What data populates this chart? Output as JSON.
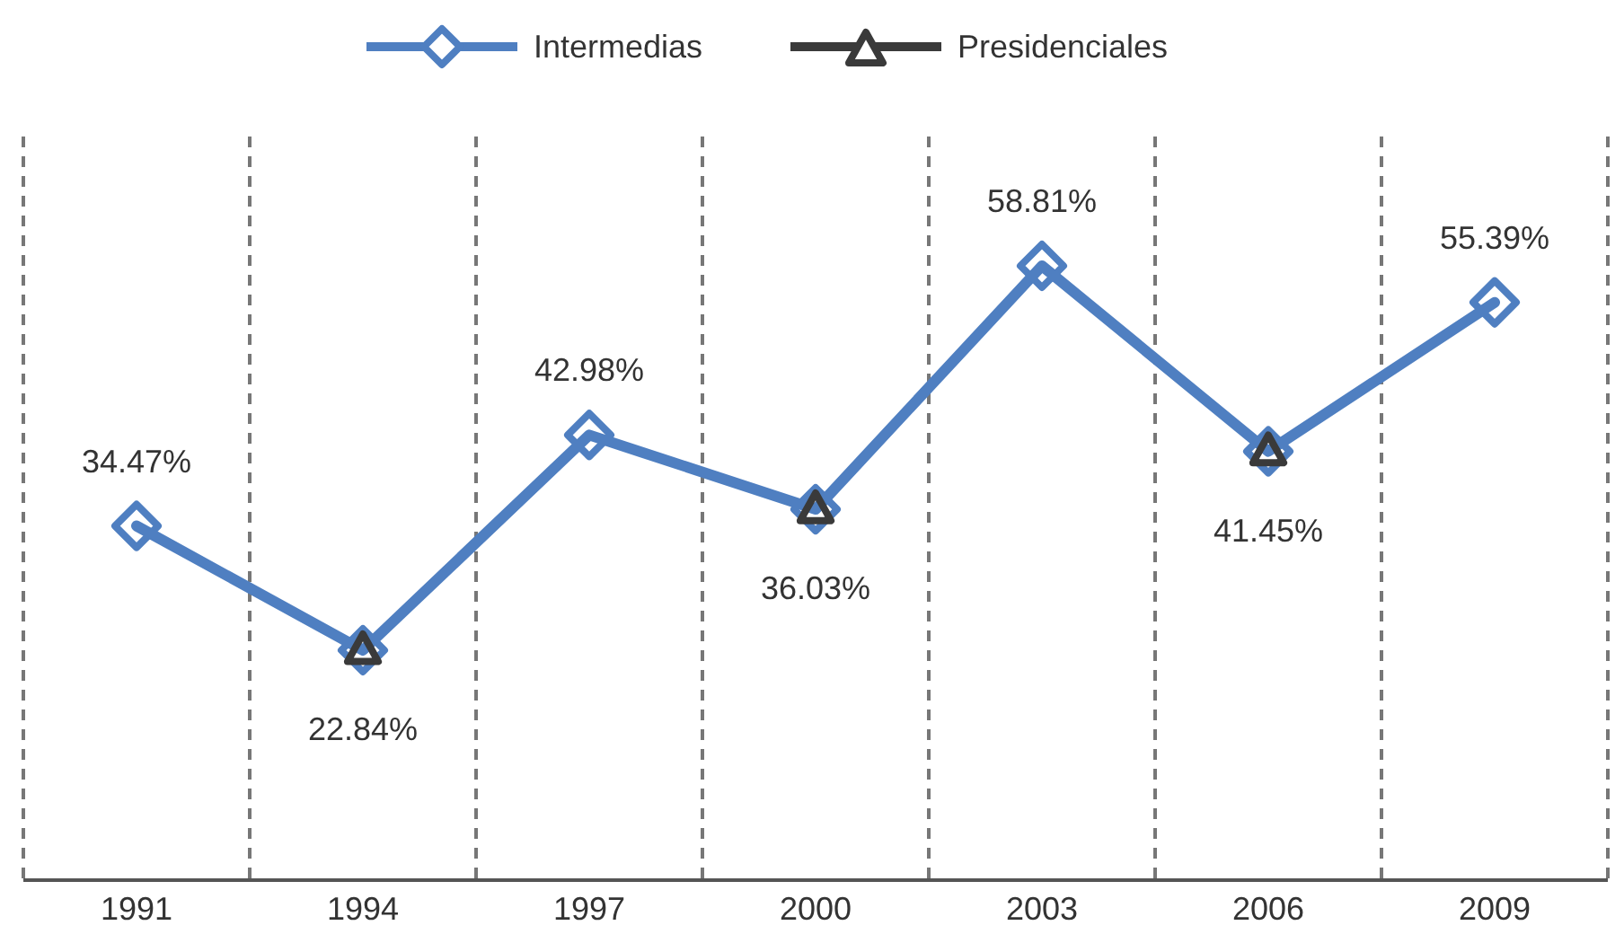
{
  "chart_data": {
    "type": "line",
    "categories": [
      "1991",
      "1994",
      "1997",
      "2000",
      "2003",
      "2006",
      "2009"
    ],
    "series": [
      {
        "name": "Intermedias",
        "color": "#4f7fc1",
        "marker": "diamond",
        "values": [
          34.47,
          22.84,
          42.98,
          36.03,
          58.81,
          41.45,
          55.39
        ],
        "value_labels": [
          "34.47%",
          null,
          "42.98%",
          null,
          "58.81%",
          null,
          "55.39%"
        ]
      },
      {
        "name": "Presidenciales",
        "type": "scatter",
        "color": "#3a3a3a",
        "marker": "triangle",
        "values": [
          null,
          22.84,
          null,
          36.03,
          null,
          41.45,
          null
        ],
        "value_labels": [
          null,
          "22.84%",
          null,
          "36.03%",
          null,
          "41.45%",
          null
        ]
      }
    ],
    "grid": "x",
    "legend": "top"
  }
}
